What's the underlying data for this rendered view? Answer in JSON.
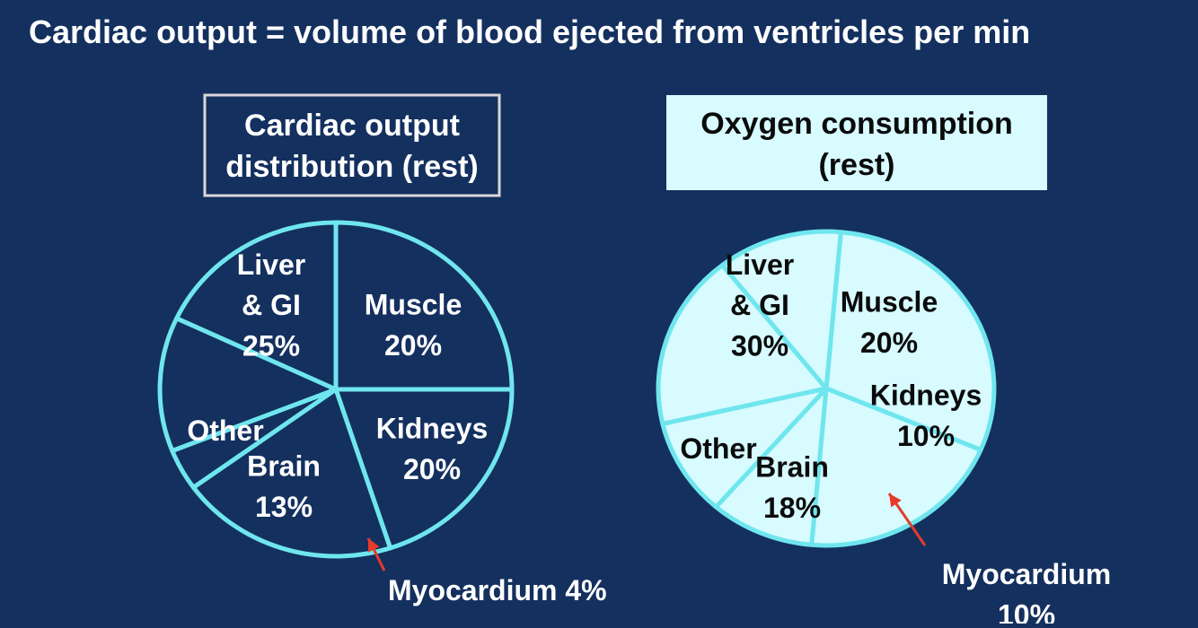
{
  "slide": {
    "title": "Cardiac output = volume of blood ejected from ventricles per min"
  },
  "colors": {
    "background": "#14305f",
    "outline": "#6fe6ee",
    "light_fill": "#d7fbff",
    "arrow": "#e63b2a",
    "title_text": "#ffffff",
    "dark_text": "#0b0b0b"
  },
  "chart_data": [
    {
      "type": "pie",
      "title": "Cardiac output distribution (rest)",
      "title_lines": [
        "Cardiac output",
        "distribution (rest)"
      ],
      "fill": "dark",
      "slices": [
        {
          "name": "Liver & GI",
          "value": 25,
          "label_lines": [
            "Liver",
            "& GI",
            "25%"
          ]
        },
        {
          "name": "Muscle",
          "value": 20,
          "label_lines": [
            "Muscle",
            "20%"
          ]
        },
        {
          "name": "Kidneys",
          "value": 20,
          "label_lines": [
            "Kidneys",
            "20%"
          ]
        },
        {
          "name": "Myocardium",
          "value": 4,
          "label_lines": [
            "Myocardium 4%"
          ]
        },
        {
          "name": "Brain",
          "value": 13,
          "label_lines": [
            "Brain",
            "13%"
          ]
        },
        {
          "name": "Other",
          "value": 18,
          "label_lines": [
            "Other"
          ]
        }
      ]
    },
    {
      "type": "pie",
      "title": "Oxygen consumption (rest)",
      "title_lines": [
        "Oxygen consumption",
        "(rest)"
      ],
      "fill": "light",
      "slices": [
        {
          "name": "Liver & GI",
          "value": 30,
          "label_lines": [
            "Liver",
            "& GI",
            "30%"
          ]
        },
        {
          "name": "Muscle",
          "value": 20,
          "label_lines": [
            "Muscle",
            "20%"
          ]
        },
        {
          "name": "Kidneys",
          "value": 10,
          "label_lines": [
            "Kidneys",
            "10%"
          ]
        },
        {
          "name": "Myocardium",
          "value": 10,
          "label_lines": [
            "Myocardium",
            "10%"
          ]
        },
        {
          "name": "Brain",
          "value": 18,
          "label_lines": [
            "Brain",
            "18%"
          ]
        },
        {
          "name": "Other",
          "value": 12,
          "label_lines": [
            "Other"
          ]
        }
      ]
    }
  ]
}
